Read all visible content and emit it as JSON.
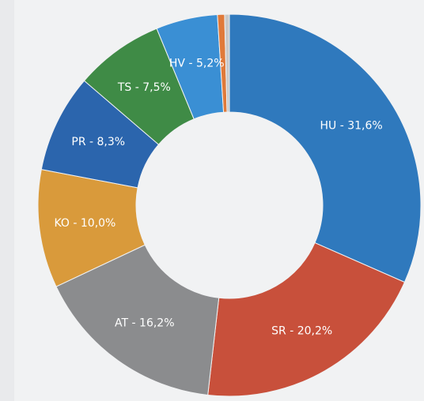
{
  "chart_data": {
    "type": "donut",
    "values": [
      31.6,
      20.2,
      16.2,
      10.0,
      8.3,
      7.5,
      5.2,
      0.6,
      0.4
    ],
    "value_labels": [
      "HU - 31,6%",
      "SR - 20,2%",
      "AT - 16,2%",
      "KO - 10,0%",
      "PR - 8,3%",
      "TS - 7,5%",
      "HV - 5,2%",
      null,
      null
    ],
    "colors": [
      "#2f79bd",
      "#c8503b",
      "#8b8c8e",
      "#d99a3b",
      "#2b65ad",
      "#3f8b46",
      "#3a8fd4",
      "#e07a3a",
      "#c9c9c9"
    ]
  }
}
